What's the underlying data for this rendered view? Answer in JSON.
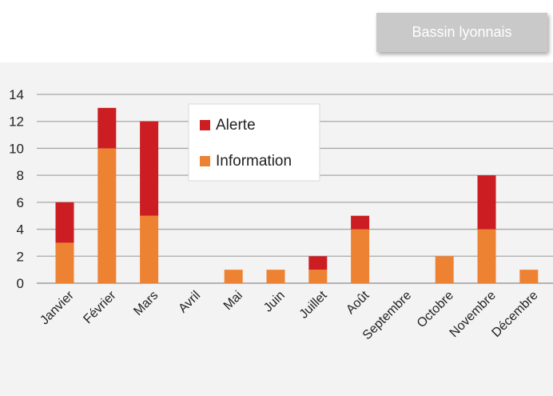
{
  "tag": {
    "label": "Bassin lyonnais"
  },
  "colors": {
    "alerte": "#cc1e22",
    "information": "#ee8233",
    "gridline": "#a8a8a8",
    "axis_text": "#222222"
  },
  "chart_data": {
    "type": "bar",
    "stacked": true,
    "title": "",
    "xlabel": "",
    "ylabel": "",
    "ylim": [
      0,
      14
    ],
    "yticks": [
      0,
      2,
      4,
      6,
      8,
      10,
      12,
      14
    ],
    "grid": true,
    "legend_position": "top-center",
    "categories": [
      "Janvier",
      "Février",
      "Mars",
      "Avril",
      "Mai",
      "Juin",
      "Juillet",
      "Août",
      "Septembre",
      "Octobre",
      "Novembre",
      "Décembre"
    ],
    "series": [
      {
        "name": "Information",
        "values": [
          3,
          10,
          5,
          0,
          1,
          1,
          1,
          4,
          0,
          2,
          4,
          1
        ]
      },
      {
        "name": "Alerte",
        "values": [
          3,
          3,
          7,
          0,
          0,
          0,
          1,
          1,
          0,
          0,
          4,
          0
        ]
      }
    ],
    "legend_order": [
      "Alerte",
      "Information"
    ]
  }
}
